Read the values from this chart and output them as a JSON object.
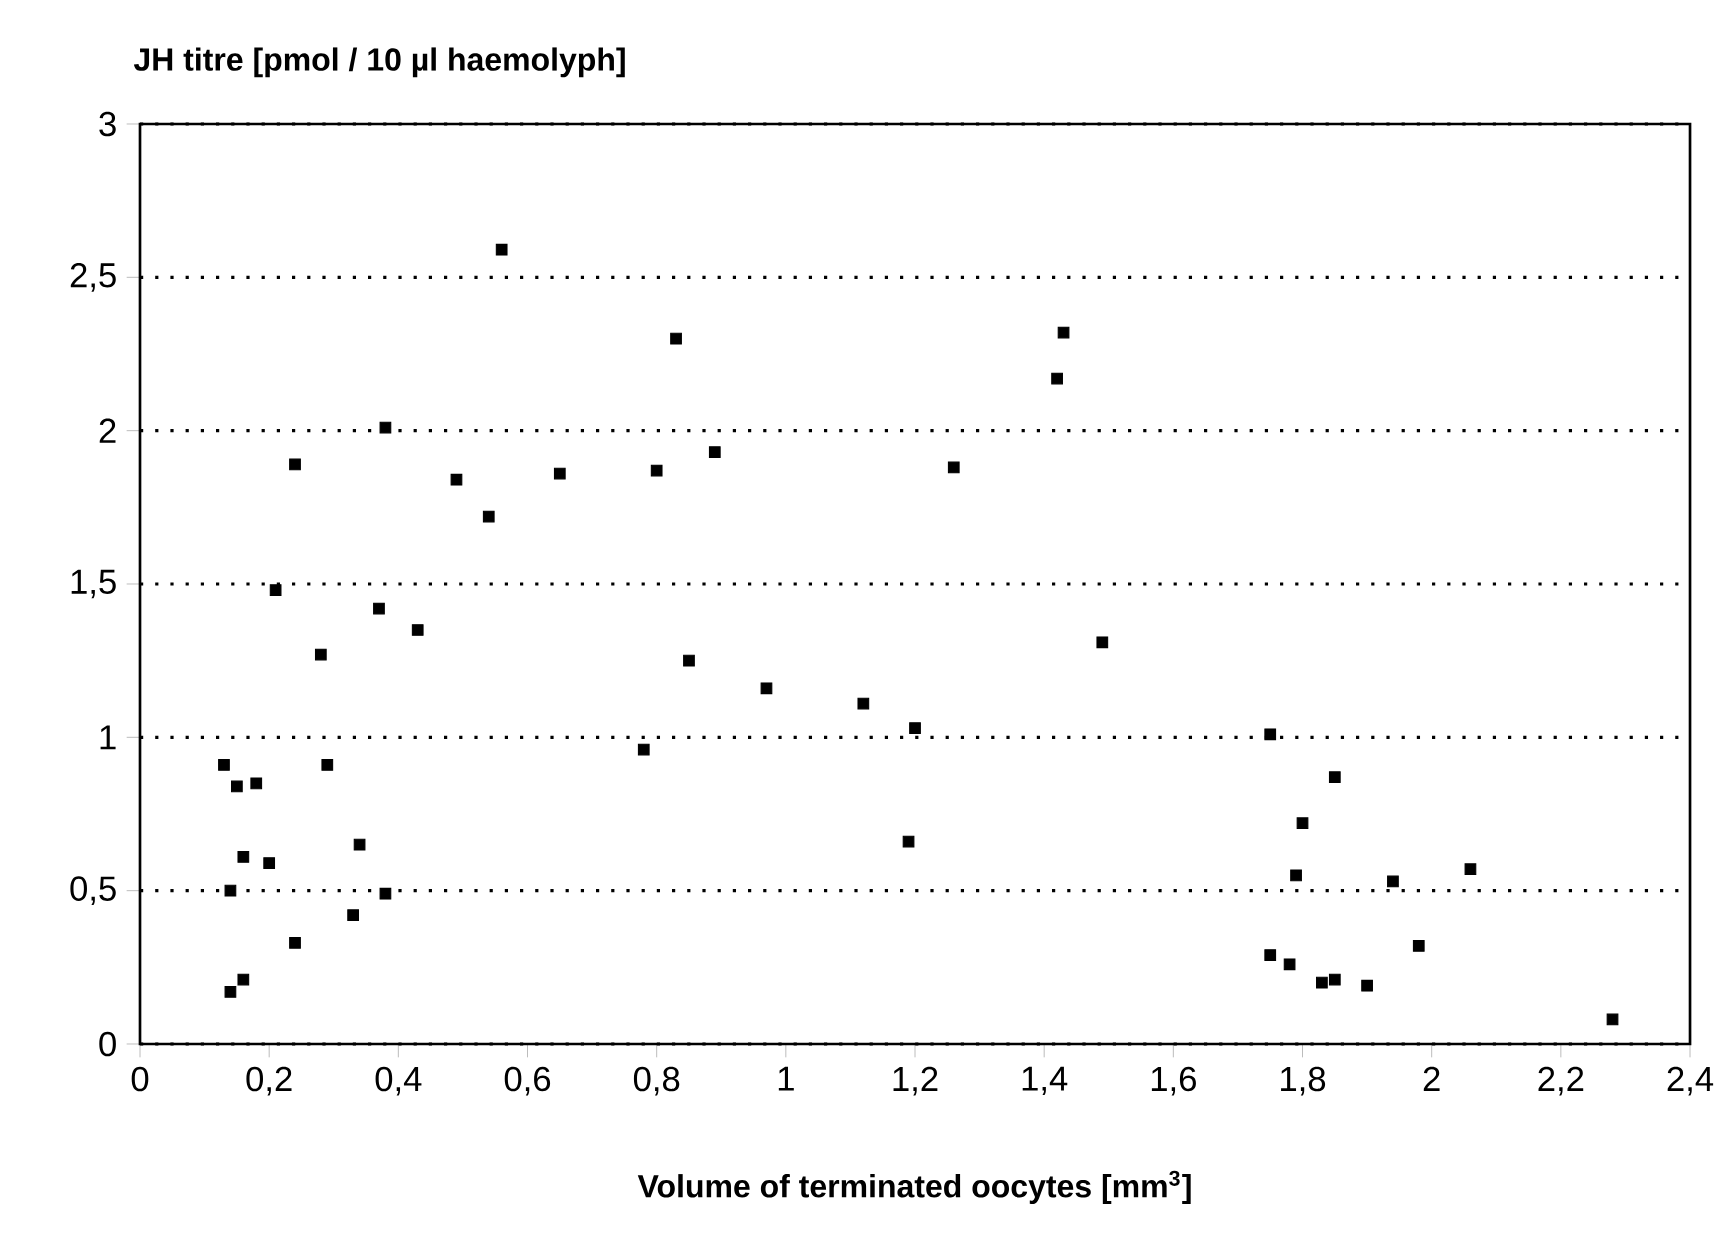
{
  "chart_data": {
    "type": "scatter",
    "ylabel": "JH titre [pmol / 10 µl haemolyph]",
    "xlabel": "Volume of terminated oocytes [mm$^{3}$]",
    "x": [
      0.13,
      0.15,
      0.18,
      0.16,
      0.2,
      0.14,
      0.16,
      0.14,
      0.24,
      0.24,
      0.21,
      0.28,
      0.29,
      0.34,
      0.33,
      0.38,
      0.38,
      0.37,
      0.43,
      0.49,
      0.54,
      0.56,
      0.65,
      0.78,
      0.8,
      0.83,
      0.85,
      0.89,
      0.97,
      1.12,
      1.19,
      1.2,
      1.26,
      1.42,
      1.43,
      1.49,
      1.75,
      1.85,
      1.8,
      1.79,
      1.75,
      1.78,
      1.83,
      1.85,
      1.9,
      1.94,
      1.98,
      2.06,
      2.28
    ],
    "values": [
      0.91,
      0.84,
      0.85,
      0.61,
      0.59,
      0.5,
      0.21,
      0.17,
      0.33,
      1.89,
      1.48,
      1.27,
      0.91,
      0.65,
      0.42,
      0.49,
      2.01,
      1.42,
      1.35,
      1.84,
      1.72,
      2.59,
      1.86,
      0.96,
      1.87,
      2.3,
      1.25,
      1.93,
      1.16,
      1.11,
      0.66,
      1.03,
      1.88,
      2.17,
      2.32,
      1.31,
      1.01,
      0.87,
      0.72,
      0.55,
      0.29,
      0.26,
      0.2,
      0.21,
      0.19,
      0.53,
      0.32,
      0.57,
      0.08
    ],
    "color": "#000000",
    "marker": "square",
    "grid": "y",
    "xlim": [
      0,
      2.4
    ],
    "ylim": [
      0,
      3
    ],
    "xticks": [
      0,
      {
        "value": 0.2,
        "label": "0,2"
      },
      {
        "value": 0.4,
        "label": "0,4"
      },
      {
        "value": 0.6,
        "label": "0,6"
      },
      {
        "value": 0.8,
        "label": "0,8"
      },
      1,
      {
        "value": 1.2,
        "label": "1,2"
      },
      {
        "value": 1.4,
        "label": "1,4"
      },
      {
        "value": 1.6,
        "label": "1,6"
      },
      {
        "value": 1.8,
        "label": "1,8"
      },
      2,
      {
        "value": 2.2,
        "label": "2,2"
      },
      {
        "value": 2.4,
        "label": "2,4"
      }
    ],
    "yticks": [
      0,
      {
        "value": 0.5,
        "label": "0,5"
      },
      1,
      {
        "value": 1.5,
        "label": "1,5"
      },
      2,
      {
        "value": 2.5,
        "label": "2,5"
      },
      3
    ]
  }
}
